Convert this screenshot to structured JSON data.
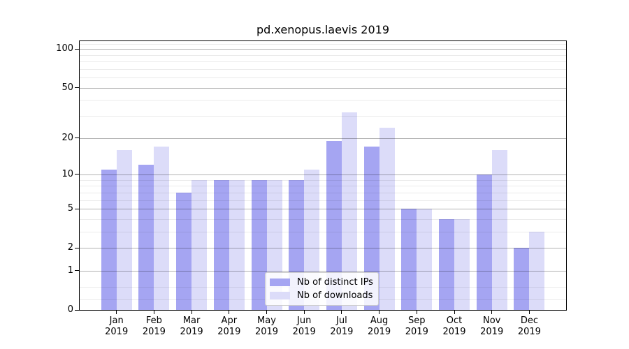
{
  "title": "pd.xenopus.laevis 2019",
  "chart_data": {
    "type": "bar",
    "title": "pd.xenopus.laevis 2019",
    "categories": [
      "Jan",
      "Feb",
      "Mar",
      "Apr",
      "May",
      "Jun",
      "Jul",
      "Aug",
      "Sep",
      "Oct",
      "Nov",
      "Dec"
    ],
    "year_label": "2019",
    "series": [
      {
        "name": "Nb of distinct IPs",
        "color": "#a5a5f2",
        "values": [
          11,
          12,
          7,
          9,
          9,
          9,
          19,
          17,
          5,
          4,
          10,
          2
        ]
      },
      {
        "name": "Nb of downloads",
        "color": "#dcdcf9",
        "values": [
          16,
          17,
          9,
          9,
          9,
          11,
          32,
          24,
          5,
          4,
          16,
          3
        ]
      }
    ],
    "xlabel": "",
    "ylabel": "",
    "yscale": "log1p",
    "ylim": [
      0,
      117
    ],
    "y_major_ticks": [
      0,
      1,
      2,
      5,
      10,
      20,
      50,
      100
    ],
    "y_minor_ticks": [
      0.2,
      0.5,
      3,
      4,
      6,
      7,
      8,
      9,
      30,
      40,
      60,
      70,
      80,
      90,
      110
    ],
    "grid": true,
    "legend_position": "lower center"
  },
  "legend": {
    "items": [
      {
        "label": "Nb of distinct IPs"
      },
      {
        "label": "Nb of downloads"
      }
    ]
  }
}
